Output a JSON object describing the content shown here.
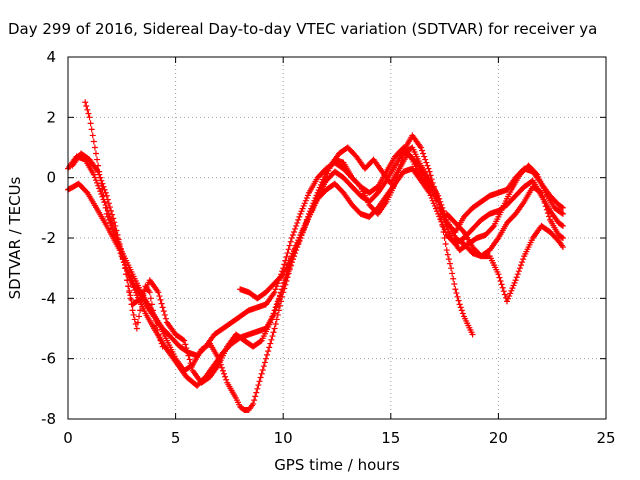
{
  "chart_data": {
    "type": "scatter",
    "title": "Day 299 of 2016, Sidereal Day-to-day VTEC variation (SDTVAR) for receiver ya",
    "xlabel": "GPS time / hours",
    "ylabel": "SDTVAR / TECUs",
    "xlim": [
      0,
      25
    ],
    "ylim": [
      -8,
      4
    ],
    "xticks": [
      "0",
      "5",
      "10",
      "15",
      "20",
      "25"
    ],
    "yticks": [
      "-8",
      "-6",
      "-4",
      "-2",
      "0",
      "2",
      "4"
    ],
    "grid": true,
    "marker": "+",
    "series": [
      {
        "color": "#ff0000",
        "x": [
          0.0,
          0.4,
          0.8,
          1.2,
          1.8,
          2.3,
          2.6,
          3.0,
          3.4,
          3.7,
          4.0,
          4.4,
          4.8,
          5.2,
          5.6,
          6.0,
          6.4,
          6.8,
          7.2,
          7.6,
          8.0,
          8.4,
          8.8,
          9.2,
          9.6,
          10.0,
          10.4,
          10.8,
          11.2,
          11.6,
          12.0,
          12.4,
          12.8,
          13.2,
          13.6,
          14.0,
          14.4,
          14.8,
          15.2,
          15.6,
          16.0,
          16.4,
          16.8,
          17.2,
          17.6,
          18.0,
          18.4,
          18.8,
          19.2,
          19.6,
          20.0,
          20.4,
          20.8,
          21.2,
          21.6,
          22.0,
          22.4,
          22.8,
          23.0
        ],
        "y": [
          0.3,
          0.7,
          0.6,
          0.1,
          -1.0,
          -2.0,
          -2.8,
          -3.5,
          -3.9,
          -4.3,
          -4.6,
          -5.0,
          -5.3,
          -5.6,
          -5.8,
          -5.9,
          -5.6,
          -5.2,
          -5.0,
          -4.8,
          -4.6,
          -4.4,
          -4.3,
          -4.2,
          -3.8,
          -3.0,
          -2.0,
          -1.2,
          -0.5,
          0.0,
          0.3,
          0.5,
          0.3,
          0.0,
          -0.3,
          -0.5,
          -0.3,
          0.2,
          0.7,
          1.0,
          0.6,
          0.0,
          -0.3,
          -0.8,
          -1.5,
          -1.8,
          -1.3,
          -1.0,
          -0.8,
          -0.6,
          -0.5,
          -0.4,
          0.0,
          0.3,
          0.2,
          -0.2,
          -0.6,
          -0.9,
          -1.0
        ]
      },
      {
        "color": "#ff0000",
        "x": [
          0.0,
          0.5,
          0.9,
          1.4,
          1.8,
          2.4,
          2.8,
          3.2,
          3.6,
          4.0,
          4.5,
          5.0,
          5.5,
          6.0,
          6.4,
          6.8,
          7.2,
          7.6,
          8.0,
          8.4,
          8.8,
          9.2,
          9.6,
          10.0,
          10.4,
          10.8,
          11.2,
          11.6,
          12.0,
          12.4,
          12.8,
          13.2,
          13.6,
          14.0,
          14.4,
          14.8,
          15.2,
          15.6,
          16.0,
          16.4,
          16.8,
          17.2,
          17.6,
          18.0,
          18.4,
          18.8,
          19.2,
          19.6,
          20.0,
          20.4,
          20.8,
          21.2,
          21.6,
          22.0,
          22.4,
          22.8,
          23.0
        ],
        "y": [
          -0.4,
          -0.2,
          -0.5,
          -1.1,
          -1.6,
          -2.4,
          -3.2,
          -3.9,
          -4.5,
          -5.0,
          -5.6,
          -6.1,
          -6.6,
          -6.9,
          -6.6,
          -6.2,
          -5.8,
          -5.5,
          -5.3,
          -5.2,
          -5.1,
          -5.0,
          -4.5,
          -3.6,
          -2.6,
          -1.9,
          -1.3,
          -0.7,
          -0.4,
          -0.2,
          -0.5,
          -0.9,
          -1.2,
          -1.3,
          -1.0,
          -0.6,
          -0.2,
          0.2,
          0.3,
          -0.1,
          -0.5,
          -1.2,
          -1.9,
          -2.2,
          -2.0,
          -1.7,
          -1.4,
          -1.2,
          -1.1,
          -0.9,
          -0.6,
          -0.3,
          -0.1,
          -0.6,
          -1.1,
          -1.5,
          -1.6
        ]
      },
      {
        "color": "#ff0000",
        "x": [
          0.8,
          1.0,
          1.2,
          1.5,
          1.8,
          2.2,
          2.6,
          3.0,
          3.4,
          3.8,
          4.2,
          4.6,
          5.0,
          5.4,
          5.8,
          6.2,
          6.6,
          7.0,
          7.4,
          7.8,
          8.0,
          8.2,
          8.4,
          8.6,
          8.8,
          9.0,
          9.2,
          9.6,
          10.0,
          10.4,
          10.8,
          11.2,
          11.6,
          12.0,
          12.4,
          12.8,
          13.2,
          13.6,
          14.0,
          14.4,
          14.8,
          15.2,
          15.6,
          16.0,
          16.4,
          16.8,
          17.2,
          17.4,
          17.6,
          17.8,
          18.0,
          18.2,
          18.4,
          18.6,
          18.8
        ],
        "y": [
          2.5,
          2.0,
          1.2,
          0.0,
          -1.2,
          -2.0,
          -2.6,
          -3.2,
          -3.8,
          -4.3,
          -4.8,
          -5.4,
          -6.0,
          -6.4,
          -6.2,
          -5.7,
          -5.5,
          -6.0,
          -6.8,
          -7.3,
          -7.6,
          -7.7,
          -7.7,
          -7.5,
          -7.0,
          -6.5,
          -6.0,
          -5.0,
          -3.8,
          -2.8,
          -2.0,
          -1.3,
          -0.6,
          -0.1,
          0.2,
          0.0,
          -0.3,
          -0.6,
          -0.8,
          -0.5,
          -0.1,
          0.4,
          0.9,
          1.4,
          1.0,
          0.2,
          -0.8,
          -1.6,
          -2.4,
          -3.0,
          -3.7,
          -4.2,
          -4.6,
          -4.9,
          -5.2
        ]
      },
      {
        "color": "#ff0000",
        "x": [
          0.2,
          0.6,
          1.0,
          1.4,
          1.8,
          2.2,
          2.6,
          2.8,
          3.0,
          3.4,
          3.8,
          4.2,
          4.6,
          5.0,
          5.4,
          5.8,
          6.2,
          6.6,
          7.0,
          7.4,
          7.8,
          8.2,
          8.6,
          9.0,
          9.4,
          9.8,
          10.2,
          10.6,
          11.0,
          11.4,
          11.8,
          12.2,
          12.6,
          13.0,
          13.4,
          13.8,
          14.2,
          14.6,
          15.0,
          15.4,
          15.8,
          16.2,
          16.6,
          17.0,
          17.4,
          17.8,
          18.2,
          18.6,
          19.0,
          19.4,
          19.8,
          20.2,
          20.6,
          21.0,
          21.4,
          21.8,
          22.2,
          22.6,
          23.0
        ],
        "y": [
          0.4,
          0.8,
          0.6,
          0.2,
          -0.6,
          -1.6,
          -2.8,
          -3.6,
          -4.2,
          -4.0,
          -3.4,
          -3.8,
          -4.8,
          -5.2,
          -5.4,
          -6.4,
          -6.8,
          -6.6,
          -6.2,
          -5.6,
          -5.2,
          -5.4,
          -5.6,
          -5.4,
          -4.8,
          -4.0,
          -3.2,
          -2.4,
          -1.6,
          -1.0,
          -0.3,
          0.4,
          0.8,
          1.0,
          0.7,
          0.3,
          0.6,
          0.2,
          -0.2,
          0.3,
          0.8,
          0.5,
          0.0,
          -0.4,
          -1.2,
          -2.0,
          -2.4,
          -2.2,
          -2.0,
          -1.9,
          -1.6,
          -1.0,
          -0.4,
          0.1,
          0.4,
          0.1,
          -0.5,
          -1.0,
          -1.2
        ]
      },
      {
        "color": "#ff0000",
        "x": [
          8.0,
          8.4,
          8.8,
          9.2,
          9.6,
          10.0,
          10.4,
          10.8,
          11.2,
          11.6,
          12.0,
          12.4,
          12.8,
          13.2,
          13.6,
          14.0,
          14.4,
          14.8,
          15.2,
          15.6,
          16.0,
          16.4,
          16.8,
          17.2,
          17.6,
          18.0,
          18.4,
          18.8,
          19.2,
          19.6,
          20.0,
          20.4,
          20.8,
          21.2,
          21.6,
          22.0,
          22.4,
          22.8,
          23.0
        ],
        "y": [
          -3.7,
          -3.8,
          -4.0,
          -3.8,
          -3.5,
          -3.2,
          -2.6,
          -2.0,
          -1.2,
          -0.5,
          0.2,
          0.6,
          0.5,
          0.0,
          -0.3,
          -0.9,
          -1.2,
          -0.8,
          -0.2,
          0.8,
          1.0,
          0.4,
          -0.1,
          -0.6,
          -1.4,
          -2.0,
          -2.2,
          -2.5,
          -2.6,
          -2.4,
          -2.0,
          -1.5,
          -1.2,
          -0.8,
          -0.3,
          -0.5,
          -1.4,
          -1.9,
          -2.0
        ]
      },
      {
        "color": "#ff0000",
        "x": [
          17.6,
          18.0,
          18.4,
          18.8,
          19.2,
          19.6,
          20.0,
          20.4,
          20.8,
          21.2,
          21.6,
          22.0,
          22.4,
          22.8,
          23.0
        ],
        "y": [
          -1.2,
          -1.5,
          -1.8,
          -2.3,
          -2.6,
          -2.6,
          -3.2,
          -4.1,
          -3.4,
          -2.6,
          -2.0,
          -1.6,
          -1.8,
          -2.1,
          -2.3
        ]
      },
      {
        "color": "#ff0000",
        "x": [
          2.4,
          2.6,
          2.8,
          3.0,
          3.2,
          3.4,
          3.6,
          3.8,
          4.0,
          4.2,
          4.4
        ],
        "y": [
          -2.4,
          -2.8,
          -3.6,
          -4.4,
          -5.0,
          -4.2,
          -3.6,
          -3.8,
          -4.6,
          -5.2,
          -5.6
        ]
      }
    ]
  }
}
